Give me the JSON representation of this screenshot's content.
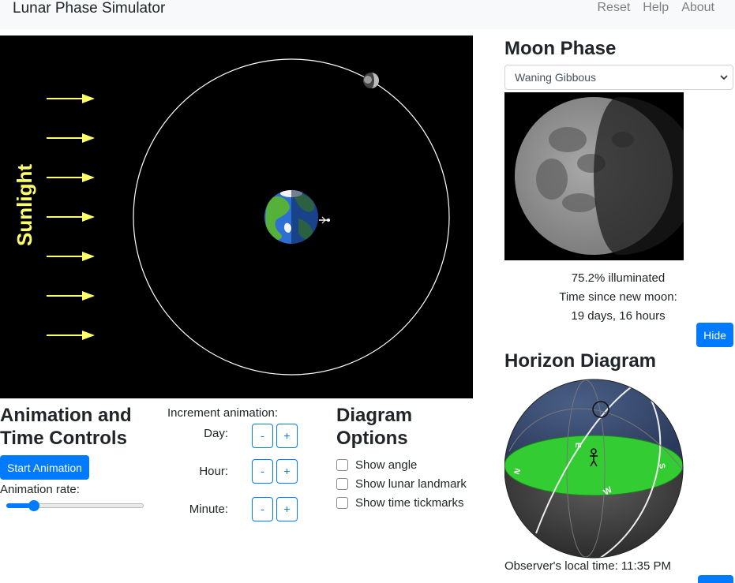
{
  "navbar": {
    "brand": "Lunar Phase Simulator",
    "links": [
      "Reset",
      "Help",
      "About"
    ]
  },
  "simulation": {
    "sunlight_label": "Sunlight"
  },
  "animation_controls": {
    "title": "Animation and Time Controls",
    "start_button": "Start Animation",
    "rate_label": "Animation rate:",
    "rate_value": 0.2
  },
  "increment": {
    "title": "Increment animation:",
    "rows": [
      {
        "label": "Day:",
        "minus": "-",
        "plus": "+"
      },
      {
        "label": "Hour:",
        "minus": "-",
        "plus": "+"
      },
      {
        "label": "Minute:",
        "minus": "-",
        "plus": "+"
      }
    ]
  },
  "diagram_options": {
    "title": "Diagram Options",
    "options": [
      {
        "label": "Show angle",
        "checked": false
      },
      {
        "label": "Show lunar landmark",
        "checked": false
      },
      {
        "label": "Show time tickmarks",
        "checked": false
      }
    ]
  },
  "moon_phase": {
    "title": "Moon Phase",
    "selected": "Waning Gibbous",
    "illuminated": "75.2% illuminated",
    "time_since_label": "Time since new moon:",
    "time_since_value": "19 days, 16 hours",
    "hide_button": "Hide"
  },
  "horizon": {
    "title": "Horizon Diagram",
    "observer_time": "Observer's local time: 11:35 PM",
    "directions": {
      "east": "E",
      "south": "S",
      "west": "W",
      "north": "N"
    }
  },
  "colors": {
    "primary": "#007bff",
    "sunlight": "#ffff66",
    "horizon_ground": "#33cc33"
  }
}
